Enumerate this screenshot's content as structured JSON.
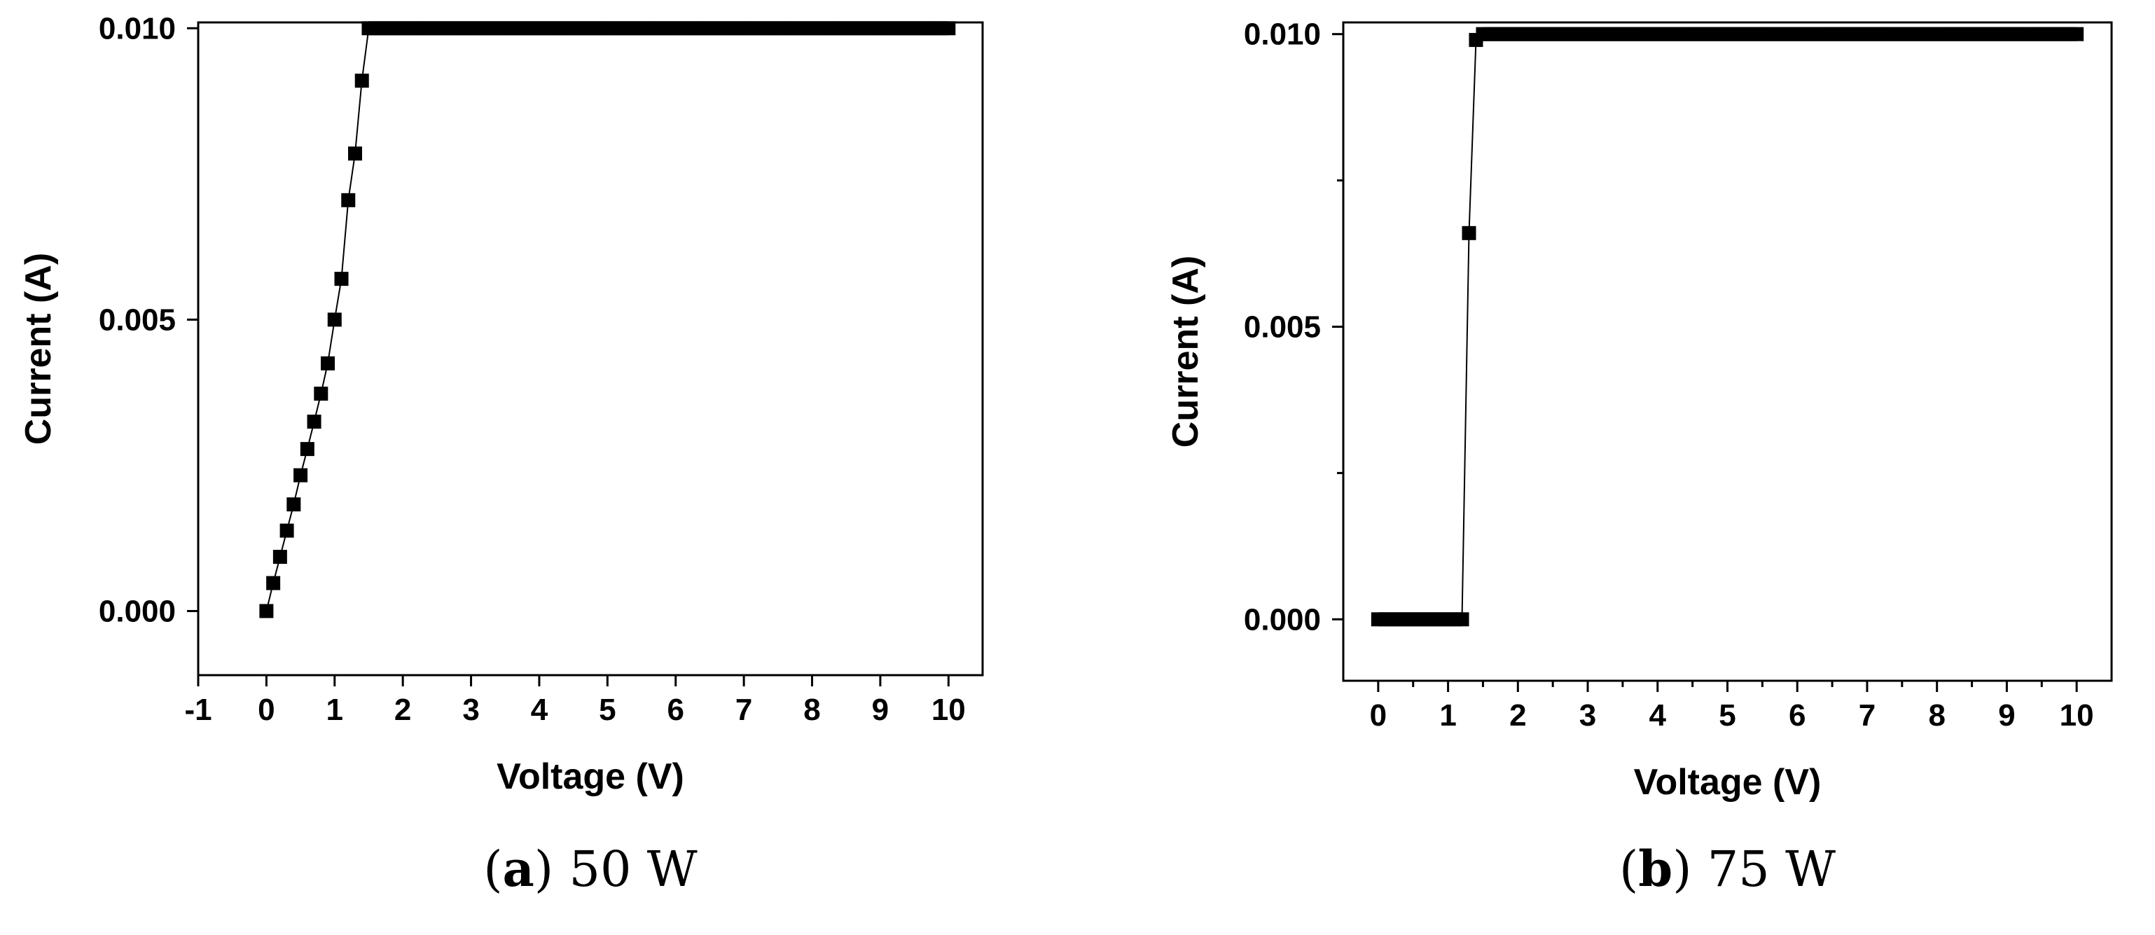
{
  "chart_data": [
    {
      "type": "scatter",
      "caption": {
        "letter": "a",
        "text": "50 W"
      },
      "xlabel": "Voltage (V)",
      "ylabel": "Current (A)",
      "xlim": [
        -1,
        10.5
      ],
      "ylim": [
        -0.0011,
        0.0101
      ],
      "xticks": [
        -1,
        0,
        1,
        2,
        3,
        4,
        5,
        6,
        7,
        8,
        9,
        10
      ],
      "xtick_labels": [
        "-1",
        "0",
        "1",
        "2",
        "3",
        "4",
        "5",
        "6",
        "7",
        "8",
        "9",
        "10"
      ],
      "yticks": [
        0.0,
        0.005,
        0.01
      ],
      "ytick_labels": [
        "0.000",
        "0.005",
        "0.010"
      ],
      "connect_line": true,
      "marker_color": "#000000",
      "series": [
        {
          "x": [
            0.0,
            0.1,
            0.2,
            0.3,
            0.4,
            0.5,
            0.6,
            0.7,
            0.8,
            0.9,
            1.0,
            1.1,
            1.2,
            1.3,
            1.4,
            1.5,
            1.6,
            1.7,
            1.8,
            1.9,
            2.0,
            2.1,
            2.2,
            2.3,
            2.4,
            2.5,
            2.6,
            2.7,
            2.8,
            2.9,
            3.0,
            3.1,
            3.2,
            3.3,
            3.4,
            3.5,
            3.6,
            3.7,
            3.8,
            3.9,
            4.0,
            4.1,
            4.2,
            4.3,
            4.4,
            4.5,
            4.6,
            4.7,
            4.8,
            4.9,
            5.0,
            5.1,
            5.2,
            5.3,
            5.4,
            5.5,
            5.6,
            5.7,
            5.8,
            5.9,
            6.0,
            6.1,
            6.2,
            6.3,
            6.4,
            6.5,
            6.6,
            6.7,
            6.8,
            6.9,
            7.0,
            7.1,
            7.2,
            7.3,
            7.4,
            7.5,
            7.6,
            7.7,
            7.8,
            7.9,
            8.0,
            8.1,
            8.2,
            8.3,
            8.4,
            8.5,
            8.6,
            8.7,
            8.8,
            8.9,
            9.0,
            9.1,
            9.2,
            9.3,
            9.4,
            9.5,
            9.6,
            9.7,
            9.8,
            9.9,
            10.0
          ],
          "y": [
            0.0,
            0.00048,
            0.00093,
            0.00138,
            0.00183,
            0.00233,
            0.00278,
            0.00325,
            0.00373,
            0.00425,
            0.005,
            0.0057,
            0.00705,
            0.00785,
            0.0091,
            0.01,
            0.01,
            0.01,
            0.01,
            0.01,
            0.01,
            0.01,
            0.01,
            0.01,
            0.01,
            0.01,
            0.01,
            0.01,
            0.01,
            0.01,
            0.01,
            0.01,
            0.01,
            0.01,
            0.01,
            0.01,
            0.01,
            0.01,
            0.01,
            0.01,
            0.01,
            0.01,
            0.01,
            0.01,
            0.01,
            0.01,
            0.01,
            0.01,
            0.01,
            0.01,
            0.01,
            0.01,
            0.01,
            0.01,
            0.01,
            0.01,
            0.01,
            0.01,
            0.01,
            0.01,
            0.01,
            0.01,
            0.01,
            0.01,
            0.01,
            0.01,
            0.01,
            0.01,
            0.01,
            0.01,
            0.01,
            0.01,
            0.01,
            0.01,
            0.01,
            0.01,
            0.01,
            0.01,
            0.01,
            0.01,
            0.01,
            0.01,
            0.01,
            0.01,
            0.01,
            0.01,
            0.01,
            0.01,
            0.01,
            0.01,
            0.01,
            0.01,
            0.01,
            0.01,
            0.01,
            0.01,
            0.01,
            0.01,
            0.01,
            0.01,
            0.01
          ]
        }
      ]
    },
    {
      "type": "scatter",
      "caption": {
        "letter": "b",
        "text": "75 W"
      },
      "xlabel": "Voltage (V)",
      "ylabel": "Current (A)",
      "xlim": [
        -0.5,
        10.5
      ],
      "ylim": [
        -0.00105,
        0.0102
      ],
      "xticks": [
        0,
        1,
        2,
        3,
        4,
        5,
        6,
        7,
        8,
        9,
        10
      ],
      "xtick_labels": [
        "0",
        "1",
        "2",
        "3",
        "4",
        "5",
        "6",
        "7",
        "8",
        "9",
        "10"
      ],
      "x_minor_ticks": true,
      "yticks": [
        0.0,
        0.005,
        0.01
      ],
      "ytick_labels": [
        "0.000",
        "0.005",
        "0.010"
      ],
      "y_minor_ticks": true,
      "connect_line": true,
      "marker_color": "#000000",
      "series": [
        {
          "x": [
            0.0,
            0.1,
            0.2,
            0.3,
            0.4,
            0.5,
            0.6,
            0.7,
            0.8,
            0.9,
            1.0,
            1.1,
            1.2,
            1.3,
            1.4,
            1.5,
            1.6,
            1.7,
            1.8,
            1.9,
            2.0,
            2.1,
            2.2,
            2.3,
            2.4,
            2.5,
            2.6,
            2.7,
            2.8,
            2.9,
            3.0,
            3.1,
            3.2,
            3.3,
            3.4,
            3.5,
            3.6,
            3.7,
            3.8,
            3.9,
            4.0,
            4.1,
            4.2,
            4.3,
            4.4,
            4.5,
            4.6,
            4.7,
            4.8,
            4.9,
            5.0,
            5.1,
            5.2,
            5.3,
            5.4,
            5.5,
            5.6,
            5.7,
            5.8,
            5.9,
            6.0,
            6.1,
            6.2,
            6.3,
            6.4,
            6.5,
            6.6,
            6.7,
            6.8,
            6.9,
            7.0,
            7.1,
            7.2,
            7.3,
            7.4,
            7.5,
            7.6,
            7.7,
            7.8,
            7.9,
            8.0,
            8.1,
            8.2,
            8.3,
            8.4,
            8.5,
            8.6,
            8.7,
            8.8,
            8.9,
            9.0,
            9.1,
            9.2,
            9.3,
            9.4,
            9.5,
            9.6,
            9.7,
            9.8,
            9.9,
            10.0
          ],
          "y": [
            0.0,
            0.0,
            0.0,
            0.0,
            0.0,
            0.0,
            0.0,
            0.0,
            0.0,
            0.0,
            0.0,
            0.0,
            0.0,
            0.0066,
            0.0099,
            0.01,
            0.01,
            0.01,
            0.01,
            0.01,
            0.01,
            0.01,
            0.01,
            0.01,
            0.01,
            0.01,
            0.01,
            0.01,
            0.01,
            0.01,
            0.01,
            0.01,
            0.01,
            0.01,
            0.01,
            0.01,
            0.01,
            0.01,
            0.01,
            0.01,
            0.01,
            0.01,
            0.01,
            0.01,
            0.01,
            0.01,
            0.01,
            0.01,
            0.01,
            0.01,
            0.01,
            0.01,
            0.01,
            0.01,
            0.01,
            0.01,
            0.01,
            0.01,
            0.01,
            0.01,
            0.01,
            0.01,
            0.01,
            0.01,
            0.01,
            0.01,
            0.01,
            0.01,
            0.01,
            0.01,
            0.01,
            0.01,
            0.01,
            0.01,
            0.01,
            0.01,
            0.01,
            0.01,
            0.01,
            0.01,
            0.01,
            0.01,
            0.01,
            0.01,
            0.01,
            0.01,
            0.01,
            0.01,
            0.01,
            0.01,
            0.01,
            0.01,
            0.01,
            0.01,
            0.01,
            0.01,
            0.01,
            0.01,
            0.01,
            0.01,
            0.01
          ]
        }
      ]
    }
  ]
}
